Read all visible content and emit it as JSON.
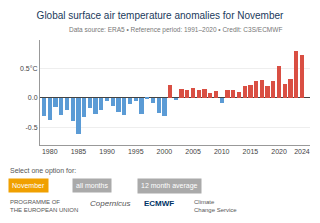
{
  "chart_data": {
    "type": "bar",
    "title": "Global surface air temperature anomalies for November",
    "subtitle": "Data source: ERA5 • Reference period: 1991–2020 • Credit: C3S/ECMWF",
    "x": [
      1979,
      1980,
      1981,
      1982,
      1983,
      1984,
      1985,
      1986,
      1987,
      1988,
      1989,
      1990,
      1991,
      1992,
      1993,
      1994,
      1995,
      1996,
      1997,
      1998,
      1999,
      2000,
      2001,
      2002,
      2003,
      2004,
      2005,
      2006,
      2007,
      2008,
      2009,
      2010,
      2011,
      2012,
      2013,
      2014,
      2015,
      2016,
      2017,
      2018,
      2019,
      2020,
      2021,
      2022,
      2023,
      2024
    ],
    "values": [
      -0.3,
      -0.38,
      -0.16,
      -0.29,
      -0.2,
      -0.39,
      -0.62,
      -0.33,
      -0.18,
      -0.28,
      -0.2,
      -0.05,
      -0.14,
      -0.24,
      -0.29,
      -0.1,
      -0.06,
      -0.27,
      -0.02,
      -0.08,
      -0.25,
      -0.3,
      0.22,
      -0.04,
      0.15,
      0.14,
      0.16,
      0.13,
      0.15,
      0.08,
      0.12,
      -0.08,
      0.13,
      0.14,
      0.1,
      0.2,
      0.22,
      0.28,
      0.31,
      0.2,
      0.28,
      0.54,
      0.23,
      0.32,
      0.79,
      0.72
    ],
    "colors": [
      "#5b9bd5",
      "#5b9bd5",
      "#5b9bd5",
      "#5b9bd5",
      "#5b9bd5",
      "#5b9bd5",
      "#5b9bd5",
      "#5b9bd5",
      "#5b9bd5",
      "#5b9bd5",
      "#5b9bd5",
      "#5b9bd5",
      "#5b9bd5",
      "#5b9bd5",
      "#5b9bd5",
      "#5b9bd5",
      "#5b9bd5",
      "#5b9bd5",
      "#5b9bd5",
      "#5b9bd5",
      "#5b9bd5",
      "#5b9bd5",
      "#d94f43",
      "#5b9bd5",
      "#d94f43",
      "#d94f43",
      "#d94f43",
      "#d94f43",
      "#d94f43",
      "#d94f43",
      "#d94f43",
      "#5b9bd5",
      "#d94f43",
      "#d94f43",
      "#d94f43",
      "#d94f43",
      "#d94f43",
      "#d94f43",
      "#d94f43",
      "#d94f43",
      "#d94f43",
      "#d94f43",
      "#d94f43",
      "#d94f43",
      "#d94f43",
      "#d94f43"
    ],
    "xlim": [
      1978.3,
      2025.4
    ],
    "xticks": [
      1980,
      1985,
      1990,
      1995,
      2000,
      2005,
      2010,
      2015,
      2020,
      2024
    ],
    "ylim": [
      -0.8,
      0.98
    ],
    "yticks": [
      -0.5,
      {
        "value": 0.0,
        "label": "0.0"
      },
      {
        "value": 0.5,
        "label": "0.5°C"
      }
    ],
    "grid": true,
    "annotations": [
      "Select one option for:",
      "November",
      "all months",
      "12 month average",
      "PROGRAMME OF\nTHE EUROPEAN UNION",
      "Copernicus",
      "ECMWF",
      "Climate\nChange Service"
    ]
  }
}
